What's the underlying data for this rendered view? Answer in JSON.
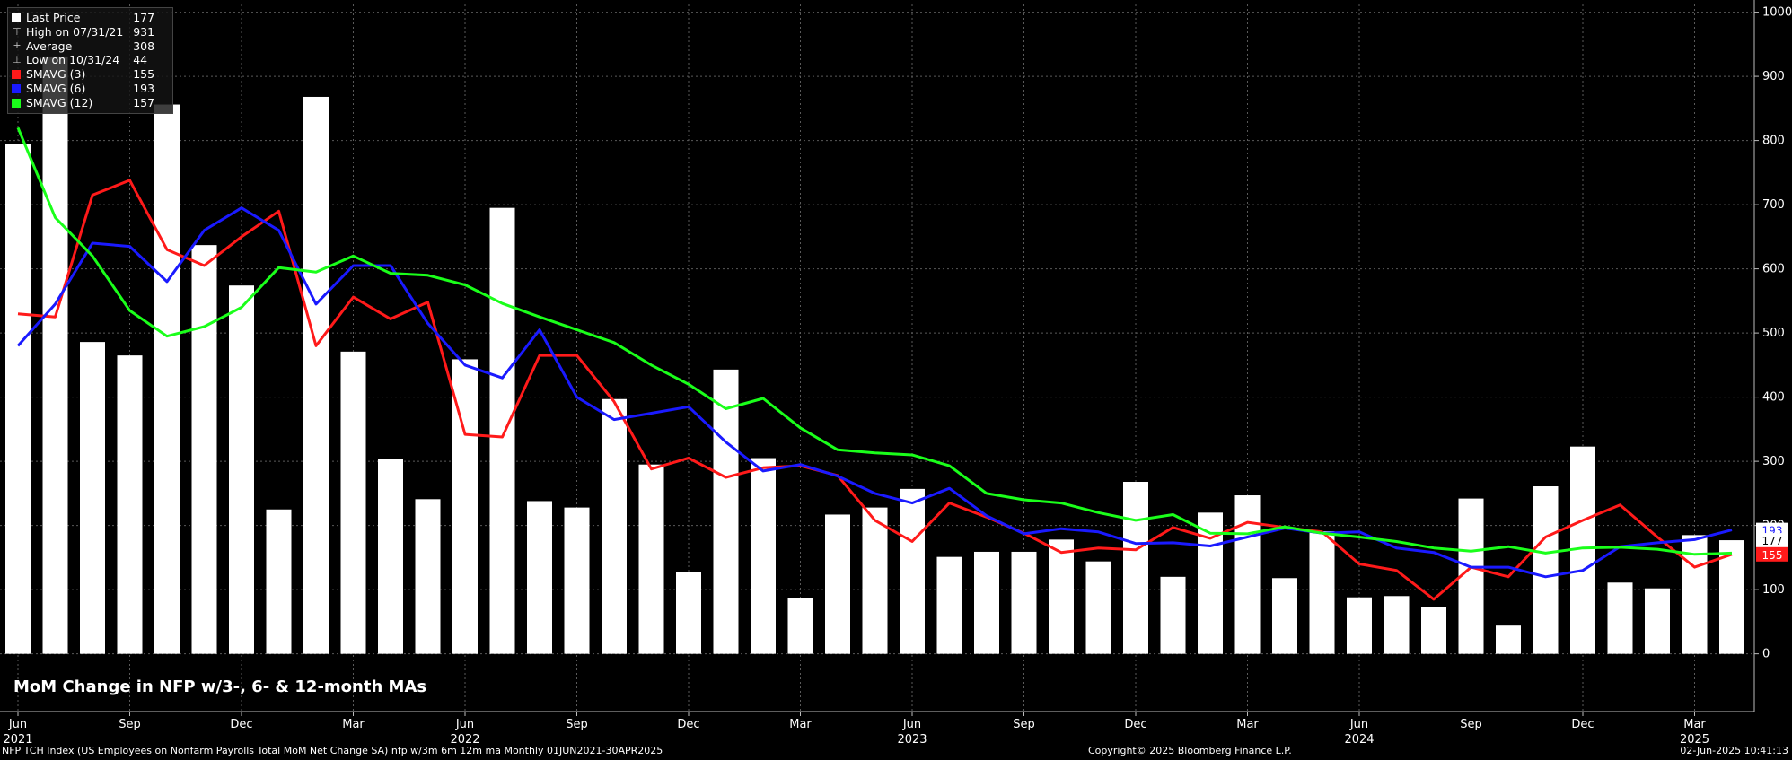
{
  "title": "MoM Change in NFP w/3-, 6- & 12-month MAs",
  "legend": [
    {
      "label": "Last Price",
      "value": "177",
      "marker": "box",
      "color": "#ffffff"
    },
    {
      "label": "High on 07/31/21",
      "value": "931",
      "marker": "high",
      "color": "#bbbbbb"
    },
    {
      "label": "Average",
      "value": "308",
      "marker": "avg",
      "color": "#bbbbbb"
    },
    {
      "label": "Low on 10/31/24",
      "value": "44",
      "marker": "low",
      "color": "#bbbbbb"
    },
    {
      "label": "SMAVG (3)",
      "value": "155",
      "marker": "box",
      "color": "#ff1a1a"
    },
    {
      "label": "SMAVG (6)",
      "value": "193",
      "marker": "box",
      "color": "#1a1aff"
    },
    {
      "label": "SMAVG (12)",
      "value": "157",
      "marker": "box",
      "color": "#1aff1a"
    }
  ],
  "footer": {
    "left": "NFP TCH Index (US Employees on Nonfarm Payrolls Total MoM Net Change SA) nfp w/3m 6m 12m ma  Monthly 01JUN2021-30APR2025",
    "center": "Copyright© 2025 Bloomberg Finance L.P.",
    "right": "02-Jun-2025 10:41:13"
  },
  "chart_data": {
    "type": "bar",
    "months": [
      "Jun 2021",
      "Jul 2021",
      "Aug 2021",
      "Sep 2021",
      "Oct 2021",
      "Nov 2021",
      "Dec 2021",
      "Jan 2022",
      "Feb 2022",
      "Mar 2022",
      "Apr 2022",
      "May 2022",
      "Jun 2022",
      "Jul 2022",
      "Aug 2022",
      "Sep 2022",
      "Oct 2022",
      "Nov 2022",
      "Dec 2022",
      "Jan 2023",
      "Feb 2023",
      "Mar 2023",
      "Apr 2023",
      "May 2023",
      "Jun 2023",
      "Jul 2023",
      "Aug 2023",
      "Sep 2023",
      "Oct 2023",
      "Nov 2023",
      "Dec 2023",
      "Jan 2024",
      "Feb 2024",
      "Mar 2024",
      "Apr 2024",
      "May 2024",
      "Jun 2024",
      "Jul 2024",
      "Aug 2024",
      "Sep 2024",
      "Oct 2024",
      "Nov 2024",
      "Dec 2024",
      "Jan 2025",
      "Feb 2025",
      "Mar 2025",
      "Apr 2025"
    ],
    "x_ticks": [
      {
        "index": 0,
        "month": "Jun",
        "year": "2021"
      },
      {
        "index": 3,
        "month": "Sep",
        "year": ""
      },
      {
        "index": 6,
        "month": "Dec",
        "year": ""
      },
      {
        "index": 9,
        "month": "Mar",
        "year": ""
      },
      {
        "index": 12,
        "month": "Jun",
        "year": "2022"
      },
      {
        "index": 15,
        "month": "Sep",
        "year": ""
      },
      {
        "index": 18,
        "month": "Dec",
        "year": ""
      },
      {
        "index": 21,
        "month": "Mar",
        "year": ""
      },
      {
        "index": 24,
        "month": "Jun",
        "year": "2023"
      },
      {
        "index": 27,
        "month": "Sep",
        "year": ""
      },
      {
        "index": 30,
        "month": "Dec",
        "year": ""
      },
      {
        "index": 33,
        "month": "Mar",
        "year": ""
      },
      {
        "index": 36,
        "month": "Jun",
        "year": "2024"
      },
      {
        "index": 39,
        "month": "Sep",
        "year": ""
      },
      {
        "index": 42,
        "month": "Dec",
        "year": ""
      },
      {
        "index": 45,
        "month": "Mar",
        "year": "2025"
      }
    ],
    "y_ticks": [
      0,
      100,
      200,
      300,
      400,
      500,
      600,
      700,
      800,
      900,
      1000
    ],
    "ylim": [
      -90,
      1012
    ],
    "grid": true,
    "series": [
      {
        "name": "Last Price",
        "type": "bar",
        "color": "#ffffff",
        "values": [
          795,
          931,
          486,
          465,
          856,
          637,
          574,
          225,
          868,
          471,
          303,
          241,
          459,
          695,
          238,
          228,
          397,
          295,
          127,
          443,
          305,
          87,
          217,
          228,
          257,
          151,
          159,
          159,
          178,
          144,
          268,
          120,
          220,
          247,
          118,
          191,
          88,
          90,
          73,
          242,
          44,
          261,
          323,
          111,
          102,
          185,
          177
        ]
      },
      {
        "name": "SMAVG (3)",
        "type": "line",
        "color": "#ff1a1a",
        "values": [
          530,
          525,
          715,
          738,
          630,
          605,
          650,
          690,
          480,
          556,
          522,
          548,
          342,
          338,
          465,
          465,
          393,
          288,
          305,
          275,
          290,
          293,
          278,
          208,
          175,
          235,
          213,
          188,
          158,
          165,
          162,
          197,
          180,
          205,
          197,
          190,
          140,
          130,
          85,
          135,
          120,
          182,
          208,
          232,
          182,
          135,
          155
        ]
      },
      {
        "name": "SMAVG (6)",
        "type": "line",
        "color": "#1a1aff",
        "values": [
          480,
          545,
          640,
          635,
          580,
          660,
          695,
          660,
          545,
          605,
          605,
          515,
          450,
          430,
          505,
          400,
          365,
          375,
          385,
          330,
          285,
          295,
          277,
          250,
          235,
          258,
          215,
          187,
          195,
          190,
          172,
          173,
          168,
          182,
          196,
          188,
          190,
          165,
          158,
          135,
          135,
          120,
          130,
          167,
          173,
          178,
          193
        ]
      },
      {
        "name": "SMAVG (12)",
        "type": "line",
        "color": "#1aff1a",
        "values": [
          820,
          680,
          620,
          535,
          495,
          510,
          540,
          602,
          595,
          620,
          593,
          590,
          575,
          546,
          525,
          505,
          485,
          450,
          420,
          382,
          398,
          352,
          318,
          313,
          310,
          293,
          250,
          240,
          235,
          220,
          208,
          217,
          188,
          187,
          198,
          188,
          182,
          175,
          165,
          160,
          167,
          157,
          165,
          166,
          163,
          155,
          157
        ]
      }
    ],
    "last_value_tags": [
      {
        "series": "SMAVG (6)",
        "value": 193,
        "label": "193",
        "bg": "#ffffff",
        "fg": "#1a1aff"
      },
      {
        "series": "Last Price",
        "value": 177,
        "label": "177",
        "bg": "#ffffff",
        "fg": "#000000"
      },
      {
        "series": "SMAVG (3)",
        "value": 155,
        "label": "155",
        "bg": "#ff1a1a",
        "fg": "#ffffff"
      }
    ]
  }
}
